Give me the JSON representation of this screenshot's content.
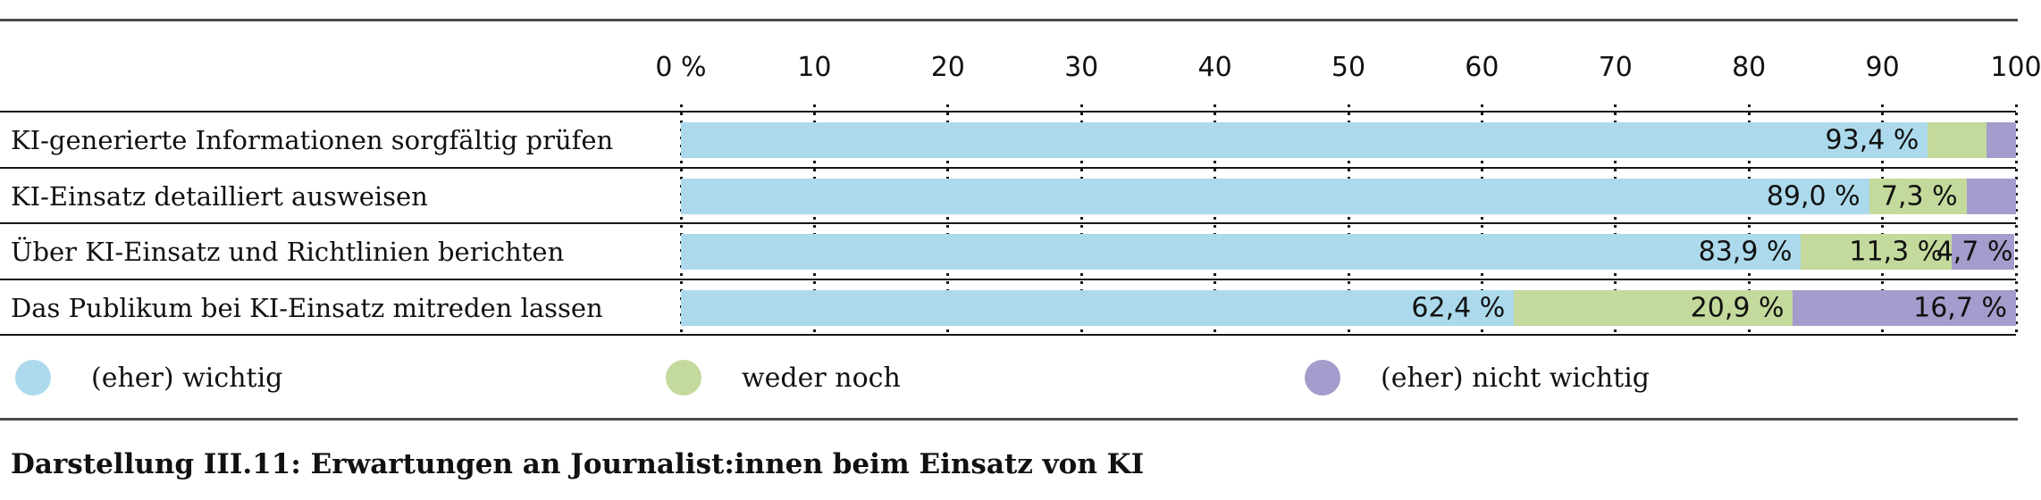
{
  "chart_data": {
    "type": "bar",
    "orientation": "horizontal",
    "stacked": true,
    "caption": "Darstellung III.11: Erwartungen an Journalist:innen beim Einsatz von KI",
    "x_axis": {
      "unit": "%",
      "range": [
        0,
        100
      ],
      "tick_values": [
        0,
        10,
        20,
        30,
        40,
        50,
        60,
        70,
        80,
        90,
        100
      ],
      "tick_labels": [
        "0 %",
        "10",
        "20",
        "30",
        "40",
        "50",
        "60",
        "70",
        "80",
        "90",
        "100"
      ],
      "grid": "dotted-vertical"
    },
    "categories": [
      "KI-generierte Informationen sorgfältig prüfen",
      "KI-Einsatz detailliert ausweisen",
      "Über KI-Einsatz und Richtlinien berichten",
      "Das Publikum bei KI-Einsatz mitreden lassen"
    ],
    "series": [
      {
        "name": "(eher) wichtig",
        "color": "#ACDAEC",
        "values": [
          93.4,
          89.0,
          83.9,
          62.4
        ],
        "value_labels": [
          "93,4 %",
          "89,0 %",
          "83,9 %",
          "62,4 %"
        ]
      },
      {
        "name": "weder noch",
        "color": "#C4D99C",
        "values": [
          4.4,
          7.3,
          11.3,
          20.9
        ],
        "value_labels": [
          "",
          "7,3 %",
          "11,3 %",
          "20,9 %"
        ]
      },
      {
        "name": "(eher) nicht wichtig",
        "color": "#A49CCC",
        "values": [
          2.2,
          3.7,
          4.7,
          16.7
        ],
        "value_labels": [
          "",
          "",
          "4,7 %",
          "16,7 %"
        ]
      }
    ],
    "legend": {
      "position": "bottom",
      "items": [
        {
          "label": "(eher) wichtig",
          "color": "#ACDAEC"
        },
        {
          "label": "weder noch",
          "color": "#C4D99C"
        },
        {
          "label": "(eher) nicht wichtig",
          "color": "#A49CCC"
        }
      ]
    }
  }
}
